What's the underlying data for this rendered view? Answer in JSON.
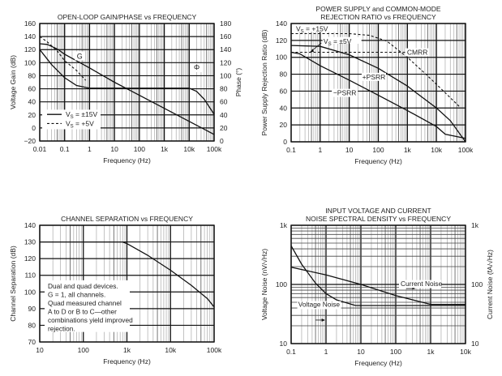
{
  "chart_data": [
    {
      "id": "gain",
      "type": "line",
      "title": [
        "OPEN-LOOP GAIN/PHASE vs FREQUENCY"
      ],
      "xlabel": "Frequency (Hz)",
      "ylabel": "Voltage Gain (dB)",
      "y2label": "Phase (°)",
      "xscale": "log",
      "xlim": [
        0.01,
        100000
      ],
      "ylim": [
        -20,
        160
      ],
      "y2lim": [
        0,
        180
      ],
      "xticks": [
        0.01,
        0.1,
        1,
        10,
        100,
        1000,
        10000,
        100000
      ],
      "xticklabels": [
        "0.01",
        "0.1",
        "1",
        "10",
        "100",
        "1k",
        "10k",
        "100k"
      ],
      "yticks": [
        -20,
        0,
        20,
        40,
        60,
        80,
        100,
        120,
        140,
        160
      ],
      "yticklabels": [
        "−20",
        "0",
        "20",
        "40",
        "60",
        "80",
        "100",
        "120",
        "140",
        "160"
      ],
      "y2ticks": [
        0,
        20,
        40,
        60,
        80,
        100,
        120,
        140,
        160,
        180
      ],
      "y2ticklabels": [
        "0",
        "20",
        "40",
        "60",
        "80",
        "100",
        "120",
        "140",
        "160",
        "180"
      ],
      "legend": [
        "VS = ±15V",
        "VS = +5V"
      ],
      "legend_position": "bottom-left",
      "annotations": [
        "G",
        "Φ"
      ],
      "series": [
        {
          "name": "G (±15V)",
          "style": "solid",
          "x": [
            0.01,
            0.02,
            0.05,
            0.1,
            1,
            10,
            100,
            1000,
            10000,
            100000
          ],
          "y": [
            129,
            128,
            121,
            113,
            92,
            70,
            50,
            30,
            10,
            -10
          ]
        },
        {
          "name": "G (+5V)",
          "style": "dashed",
          "x": [
            0.01,
            0.02,
            0.05,
            0.1,
            0.3,
            0.7
          ],
          "y": [
            140,
            132,
            118,
            103,
            88,
            73
          ]
        },
        {
          "name": "Phase (±15V)",
          "style": "solid",
          "x": [
            0.01,
            0.03,
            0.1,
            0.3,
            0.7,
            1,
            10,
            100,
            1000,
            10000,
            20000,
            40000,
            100000
          ],
          "y": [
            140,
            117,
            97,
            85,
            82,
            81,
            81,
            81,
            81,
            81,
            76,
            64,
            41
          ]
        }
      ]
    },
    {
      "id": "psrr",
      "type": "line",
      "title": [
        "POWER SUPPLY and COMMON-MODE",
        "REJECTION RATIO vs FREQUENCY"
      ],
      "xlabel": "Frequency (Hz)",
      "ylabel": "Power Supply Rejection Ratio (dB)",
      "xscale": "log",
      "xlim": [
        0.1,
        100000
      ],
      "ylim": [
        0,
        140
      ],
      "xticks": [
        0.1,
        1,
        10,
        100,
        1000,
        10000,
        100000
      ],
      "xticklabels": [
        "0.1",
        "1",
        "10",
        "100",
        "1k",
        "10k",
        "100k"
      ],
      "yticks": [
        0,
        20,
        40,
        60,
        80,
        100,
        120,
        140
      ],
      "yticklabels": [
        "0",
        "20",
        "40",
        "60",
        "80",
        "100",
        "120",
        "140"
      ],
      "annotations": [
        "VS = +15V",
        "VS = ±5V",
        "CMRR",
        "+PSRR",
        "−PSRR"
      ],
      "series": [
        {
          "name": "CMRR +15V",
          "style": "dashed",
          "x": [
            0.1,
            10,
            50,
            200,
            1000,
            5000,
            20000,
            60000
          ],
          "y": [
            128,
            128,
            126,
            119,
            100,
            78,
            58,
            42
          ]
        },
        {
          "name": "CMRR ±5V",
          "style": "dashed",
          "x": [
            0.1,
            1000
          ],
          "y": [
            106,
            106
          ]
        },
        {
          "name": "+PSRR",
          "style": "solid",
          "x": [
            0.1,
            1,
            10,
            100,
            1000,
            10000,
            30000,
            100000
          ],
          "y": [
            114,
            113,
            103,
            87,
            66,
            40,
            25,
            0
          ]
        },
        {
          "name": "−PSRR",
          "style": "solid",
          "x": [
            0.1,
            0.2,
            1,
            10,
            100,
            1000,
            10000,
            20000,
            100000
          ],
          "y": [
            106,
            104,
            90,
            73,
            55,
            37,
            18,
            9,
            4
          ]
        }
      ]
    },
    {
      "id": "chsep",
      "type": "line",
      "title": [
        "CHANNEL SEPARATION vs FREQUENCY"
      ],
      "xlabel": "Frequency (Hz)",
      "ylabel": "Channel Separation (dB)",
      "xscale": "log",
      "xlim": [
        10,
        100000
      ],
      "ylim": [
        70,
        140
      ],
      "xticks": [
        10,
        100,
        1000,
        10000,
        100000
      ],
      "xticklabels": [
        "10",
        "100",
        "1k",
        "10k",
        "100k"
      ],
      "yticks": [
        70,
        80,
        90,
        100,
        110,
        120,
        130,
        140
      ],
      "yticklabels": [
        "70",
        "80",
        "90",
        "100",
        "110",
        "120",
        "130",
        "140"
      ],
      "note": [
        "Dual and quad devices.",
        "G = 1, all channels.",
        "Quad measured channel",
        "A to D or B to C—other",
        "combinations yield improved",
        "rejection."
      ],
      "series": [
        {
          "name": "Channel Separation",
          "style": "solid",
          "x": [
            10,
            800,
            1000,
            3000,
            10000,
            30000,
            70000,
            100000
          ],
          "y": [
            130,
            130,
            129,
            122,
            113,
            104,
            96,
            91
          ]
        }
      ]
    },
    {
      "id": "noise",
      "type": "line",
      "title": [
        "INPUT VOLTAGE AND CURRENT",
        "NOISE SPECTRAL DENSITY vs FREQUENCY"
      ],
      "xlabel": "Frequency (Hz)",
      "ylabel": "Voltage Noise (nV/√Hz)",
      "y2label": "Current Noise (fA/√Hz)",
      "xscale": "log",
      "xlim": [
        0.1,
        10000
      ],
      "yscale": "log",
      "ylim": [
        10,
        1000
      ],
      "xticks": [
        0.1,
        1,
        10,
        100,
        1000,
        10000
      ],
      "xticklabels": [
        "0.1",
        "1",
        "10",
        "100",
        "1k",
        "10k"
      ],
      "yticks": [
        10,
        100,
        1000
      ],
      "yticklabels": [
        "10",
        "100",
        "1k"
      ],
      "y2ticklabels": [
        "10",
        "100",
        "1k"
      ],
      "annotations": [
        "Current Noise",
        "Voltage Noise"
      ],
      "series": [
        {
          "name": "Voltage Noise",
          "style": "solid",
          "x": [
            0.1,
            0.2,
            0.5,
            1,
            2,
            7,
            100,
            10000
          ],
          "y": [
            450,
            220,
            105,
            70,
            55,
            44,
            44,
            44
          ]
        },
        {
          "name": "Current Noise",
          "style": "solid",
          "x": [
            0.1,
            1,
            10,
            100,
            1000,
            10000
          ],
          "y": [
            195,
            145,
            100,
            65,
            46,
            46
          ]
        }
      ]
    }
  ]
}
